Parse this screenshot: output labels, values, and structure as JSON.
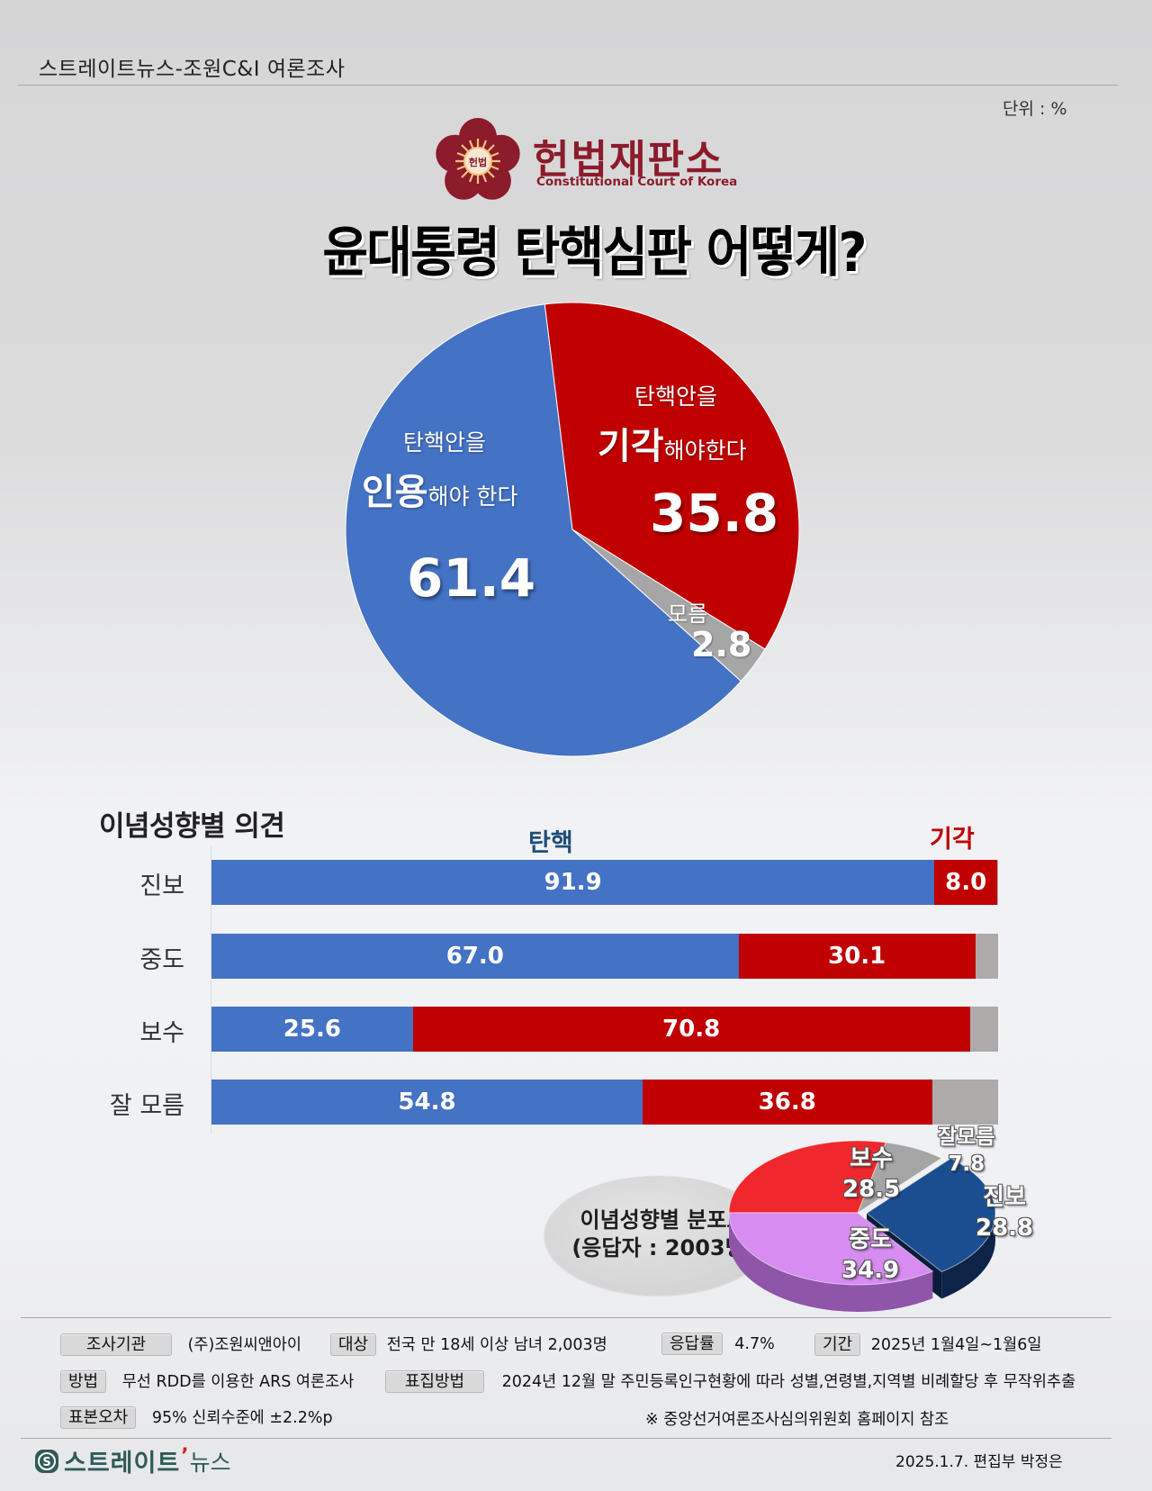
{
  "header": {
    "source": "스트레이트뉴스-조원C&I 여론조사",
    "unit": "단위 : %"
  },
  "logo": {
    "emblem_text": "헌법",
    "name": "헌법재판소",
    "subtitle": "Constitutional Court of Korea"
  },
  "title": "윤대통령 탄핵심판 어떻게?",
  "main_pie": {
    "uphold": {
      "line1": "탄핵안을",
      "big": "인용",
      "rest": "해야 한다",
      "value": "61.4"
    },
    "dismiss": {
      "line1": "탄핵안을",
      "big": "기각",
      "rest": "해야한다",
      "value": "35.8"
    },
    "unknown": {
      "label": "모름",
      "value": "2.8"
    }
  },
  "ideology": {
    "title": "이념성향별 의견",
    "col_impeach": "탄핵",
    "col_dismiss": "기각",
    "rows": [
      {
        "label": "진보",
        "impeach": "91.9",
        "dismiss": "8.0"
      },
      {
        "label": "중도",
        "impeach": "67.0",
        "dismiss": "30.1"
      },
      {
        "label": "보수",
        "impeach": "25.6",
        "dismiss": "70.8"
      },
      {
        "label": "잘 모름",
        "impeach": "54.8",
        "dismiss": "36.8"
      }
    ]
  },
  "distribution": {
    "title_line1": "이념성향별 분포도",
    "title_line2": "(응답자 : 2003명)",
    "slices": [
      {
        "label": "보수",
        "value": "28.5"
      },
      {
        "label": "잘모름",
        "value": "7.8"
      },
      {
        "label": "진보",
        "value": "28.8"
      },
      {
        "label": "중도",
        "value": "34.9"
      }
    ]
  },
  "footer": {
    "agency_label": "조사기관",
    "agency": "(주)조원씨앤아이",
    "target_label": "대상",
    "target": "전국 만 18세 이상 남녀 2,003명",
    "response_label": "응답률",
    "response": "4.7%",
    "period_label": "기간",
    "period": "2025년 1월4일~1월6일",
    "method_label": "방법",
    "method": "무선 RDD를 이용한 ARS 여론조사",
    "sampling_label": "표집방법",
    "sampling": "2024년 12월 말 주민등록인구현황에 따라 성별,연령별,지역별 비례할당 후 무작위추출",
    "error_label": "표본오차",
    "error": "95% 신뢰수준에 ±2.2%p",
    "note": "※ 중앙선거여론조사심의위원회 홈페이지 참조",
    "brand_main": "스트레이트",
    "brand_sub": "뉴스",
    "credit": "2025.1.7. 편집부 박정은"
  },
  "colors": {
    "impeach": "#4472c4",
    "dismiss": "#c00000",
    "unknown": "#a6a6a6",
    "bar_unknown": "#aeaaaa",
    "court": "#8c1b2b",
    "dist_conservative": "#f0282d",
    "dist_unknown": "#a5a5a5",
    "dist_progressive": "#1b4e91",
    "dist_moderate": "#d68cf0"
  },
  "chart_data": [
    {
      "type": "pie",
      "title": "윤대통령 탄핵심판 어떻게?",
      "unit": "%",
      "categories": [
        "탄핵안을 인용해야 한다",
        "탄핵안을 기각해야한다",
        "모름"
      ],
      "values": [
        61.4,
        35.8,
        2.8
      ],
      "colors": [
        "#4472c4",
        "#c00000",
        "#a6a6a6"
      ]
    },
    {
      "type": "bar",
      "orientation": "horizontal-stacked",
      "title": "이념성향별 의견",
      "unit": "%",
      "categories": [
        "진보",
        "중도",
        "보수",
        "잘 모름"
      ],
      "series": [
        {
          "name": "탄핵",
          "values": [
            91.9,
            67.0,
            25.6,
            54.8
          ],
          "color": "#4472c4"
        },
        {
          "name": "기각",
          "values": [
            8.0,
            30.1,
            70.8,
            36.8
          ],
          "color": "#c00000"
        },
        {
          "name": "모름",
          "values": [
            0.1,
            2.9,
            3.6,
            8.4
          ],
          "color": "#aeaaaa"
        }
      ],
      "xlim": [
        0,
        100
      ],
      "grid": false
    },
    {
      "type": "pie",
      "style": "3d",
      "title": "이념성향별 분포도 (응답자 : 2003명)",
      "unit": "%",
      "categories": [
        "보수",
        "잘모름",
        "진보",
        "중도"
      ],
      "values": [
        28.5,
        7.8,
        28.8,
        34.9
      ],
      "colors": [
        "#f0282d",
        "#a5a5a5",
        "#1b4e91",
        "#d68cf0"
      ]
    }
  ]
}
